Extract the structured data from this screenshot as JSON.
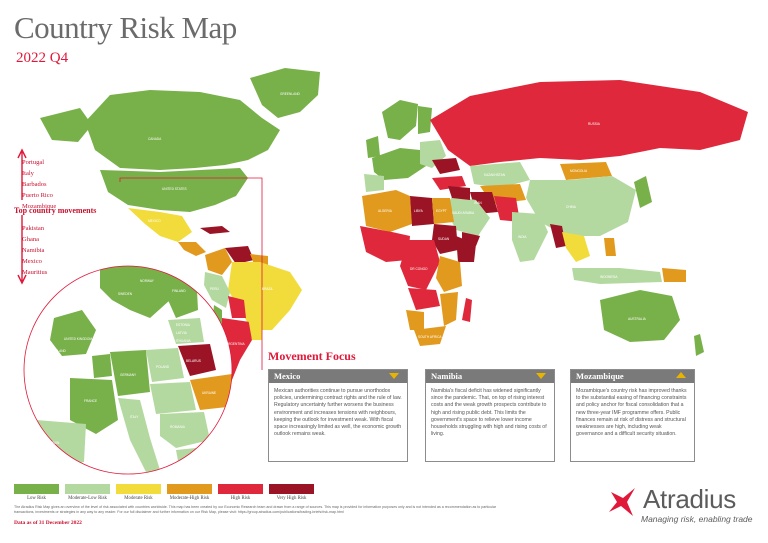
{
  "header": {
    "title": "Country Risk Map",
    "subtitle": "2022 Q4"
  },
  "movements": {
    "label": "Top country movements",
    "up": [
      "Portugal",
      "Italy",
      "Barbados",
      "Puerto Rico",
      "Mozambique"
    ],
    "down": [
      "Pakistan",
      "Ghana",
      "Namibia",
      "Mexico",
      "Mauritius"
    ]
  },
  "map": {
    "sea_color": "#ffffff",
    "country_labels": {
      "canada": "CANADA",
      "usa": "UNITED STATES",
      "mexico": "MEXICO",
      "brazil": "BRAZIL",
      "argentina": "ARGENTINA",
      "peru": "PERU",
      "greenland": "GREENLAND",
      "russia": "RUSSIA",
      "china": "CHINA",
      "india": "INDIA",
      "australia": "AUSTRALIA",
      "kazakhstan": "KAZAKHSTAN",
      "mongolia": "MONGOLIA",
      "algeria": "ALGERIA",
      "libya": "LIBYA",
      "egypt": "EGYPT",
      "sudan": "SUDAN",
      "saudi": "SAUDI ARABIA",
      "iran": "IRAN",
      "congo": "DR CONGO",
      "south_africa": "SOUTH AFRICA",
      "indonesia": "INDONESIA",
      "france": "FRANCE",
      "germany": "GERMANY",
      "spain": "SPAIN",
      "italy": "ITALY",
      "poland": "POLAND",
      "ukraine": "UKRAINE",
      "sweden": "SWEDEN",
      "norway": "NORWAY",
      "finland": "FINLAND",
      "uk": "UNITED KINGDOM",
      "ireland": "IRELAND",
      "romania": "ROMANIA",
      "belarus": "BELARUS",
      "estonia": "ESTONIA",
      "latvia": "LATVIA",
      "lithuania": "LITHUANIA"
    }
  },
  "focus": {
    "title": "Movement Focus",
    "cards": [
      {
        "name": "Mexico",
        "direction": "down",
        "text": "Mexican authorities continue to pursue unorthodox policies, undermining contract rights and the rule of law. Regulatory uncertainty further worsens the business environment and increases tensions with neighbours, keeping the outlook for investment weak. With fiscal space increasingly limited as well, the economic growth outlook remains weak."
      },
      {
        "name": "Namibia",
        "direction": "down",
        "text": "Namibia's fiscal deficit has widened significantly since the pandemic. That, on top of rising interest costs and the weak growth prospects contribute to high and rising public debt. This limits the government's space to relieve lower income households struggling with high and rising costs of living."
      },
      {
        "name": "Mozambique",
        "direction": "up",
        "text": "Mozambique's country risk has improved thanks to the substantial easing of financing constraints and policy anchor for fiscal consolidation that a new three-year IMF programme offers. Public finances remain at risk of distress and structural weaknesses are high, including weak governance and a difficult security situation."
      }
    ]
  },
  "legend": [
    {
      "label": "Low Risk",
      "color": "#78b04a"
    },
    {
      "label": "Moderate-Low Risk",
      "color": "#b4d9a0"
    },
    {
      "label": "Moderate Risk",
      "color": "#f2dc3c"
    },
    {
      "label": "Moderate-High Risk",
      "color": "#e19a1e"
    },
    {
      "label": "High Risk",
      "color": "#e0283c"
    },
    {
      "label": "Very High Risk",
      "color": "#9b1426"
    }
  ],
  "footer": {
    "disclaimer": "The Atradius Risk Map gives an overview of the level of risk associated with countries worldwide. This map has been created by our Economic Research team and drawn from a range of sources. This map is provided for information purposes only and is not intended as a recommendation as to particular transactions, investments or strategies in any way to any reader. For our full disclaimer and further information on our Risk Map, please visit: https://group.atradius.com/publications/trading-briefs/risk-map.html",
    "date": "Data as of 31 December 2022"
  },
  "brand": {
    "name": "Atradius",
    "tagline": "Managing risk, enabling trade",
    "color": "#e0193a"
  },
  "colors": {
    "accent": "#e0193a",
    "title_grey": "#6b6b6b",
    "card_header": "#7a7a7a"
  }
}
